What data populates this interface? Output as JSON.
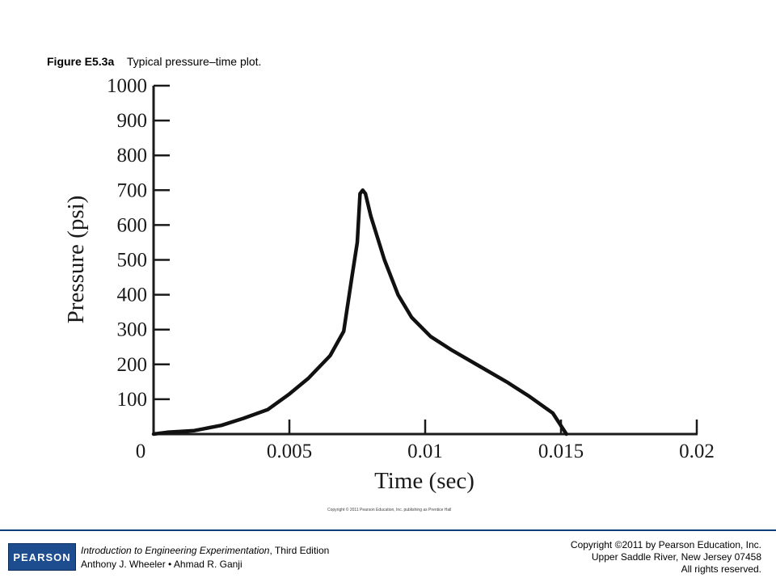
{
  "caption": {
    "label": "Figure E5.3a",
    "text": "Typical pressure–time plot."
  },
  "chart_data": {
    "type": "line",
    "title": "",
    "xlabel": "Time (sec)",
    "ylabel": "Pressure (psi)",
    "xlim": [
      0,
      0.02
    ],
    "ylim": [
      0,
      1000
    ],
    "x_ticks": [
      0,
      0.005,
      0.01,
      0.015,
      0.02
    ],
    "x_tick_labels": [
      "0",
      "0.005",
      "0.01",
      "0.015",
      "0.02"
    ],
    "y_ticks": [
      100,
      200,
      300,
      400,
      500,
      600,
      700,
      800,
      900,
      1000
    ],
    "y_tick_labels": [
      "100",
      "200",
      "300",
      "400",
      "500",
      "600",
      "700",
      "800",
      "900",
      "1000"
    ],
    "grid": false,
    "series": [
      {
        "name": "",
        "x": [
          0,
          0.0005,
          0.0015,
          0.0025,
          0.0033,
          0.0042,
          0.005,
          0.0057,
          0.0065,
          0.007,
          0.0073,
          0.0075,
          0.0076,
          0.0077,
          0.0078,
          0.008,
          0.0085,
          0.009,
          0.0095,
          0.0102,
          0.011,
          0.012,
          0.013,
          0.0138,
          0.0147,
          0.0152
        ],
        "y": [
          0,
          5,
          10,
          25,
          45,
          70,
          115,
          160,
          225,
          295,
          450,
          550,
          690,
          700,
          690,
          625,
          500,
          400,
          335,
          280,
          240,
          195,
          150,
          110,
          60,
          0
        ]
      }
    ]
  },
  "chart_copyright": "Copyright © 2011 Pearson Education, Inc. publishing as Prentice Hall",
  "footer": {
    "logo_text": "PEARSON",
    "book_title": "Introduction to Engineering Experimentation",
    "edition": ", Third Edition",
    "authors": "Anthony J. Wheeler • Ahmad R. Ganji",
    "copyright_line1": "Copyright ©2011 by Pearson Education, Inc.",
    "copyright_line2": "Upper Saddle River, New Jersey 07458",
    "copyright_line3": "All rights reserved."
  }
}
